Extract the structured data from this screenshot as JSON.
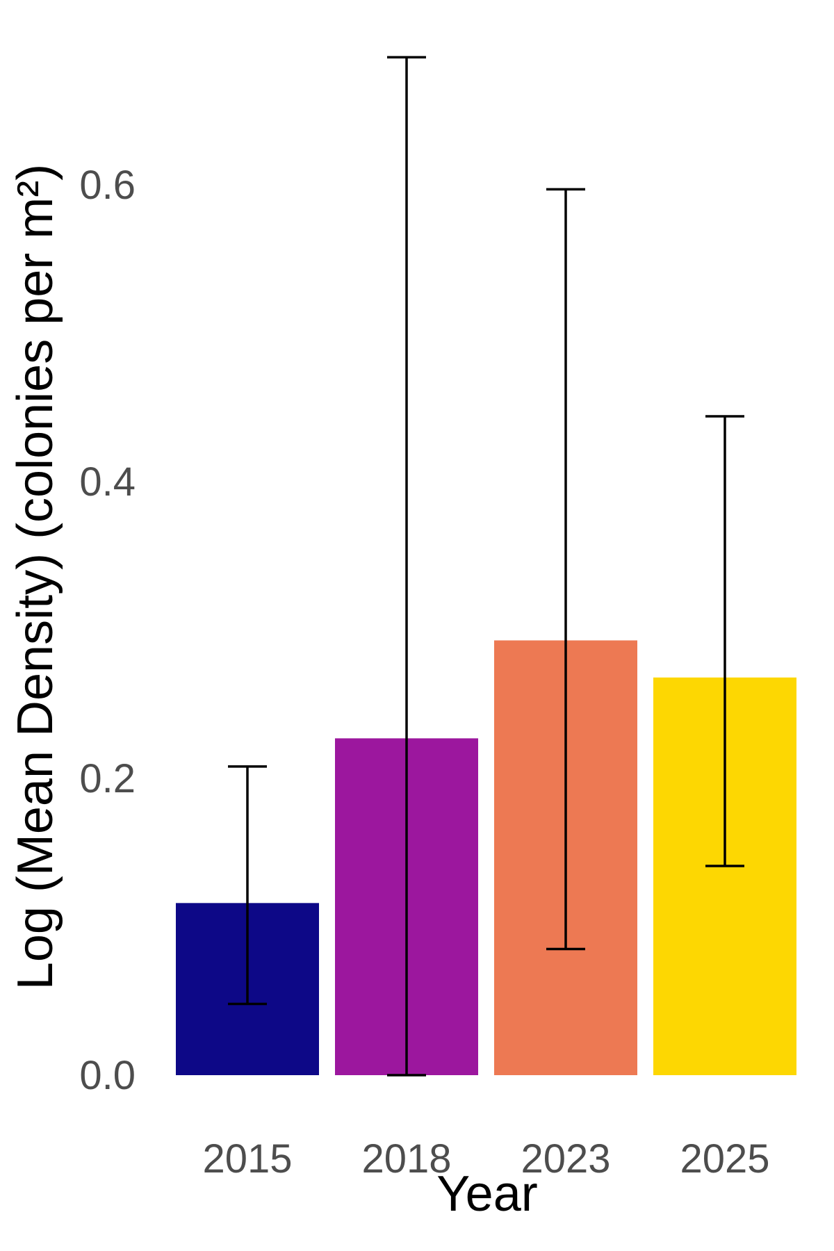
{
  "chart_data": {
    "type": "bar",
    "title": "",
    "xlabel": "Year",
    "ylabel": "Log (Mean Density) (colonies per m²)",
    "categories": [
      "2015",
      "2018",
      "2023",
      "2025"
    ],
    "values": [
      0.116,
      0.227,
      0.293,
      0.268
    ],
    "error_low": [
      0.048,
      0.0,
      0.085,
      0.141
    ],
    "error_high": [
      0.208,
      0.686,
      0.597,
      0.444
    ],
    "colors": [
      "#0d0887",
      "#9c179e",
      "#ed7953",
      "#fdd702"
    ],
    "ylim": [
      0,
      0.7
    ],
    "yticks": [
      "0.0",
      "0.2",
      "0.4",
      "0.6"
    ],
    "ytick_values": [
      0,
      0.2,
      0.4,
      0.6
    ],
    "grid": false,
    "legend": "none"
  }
}
